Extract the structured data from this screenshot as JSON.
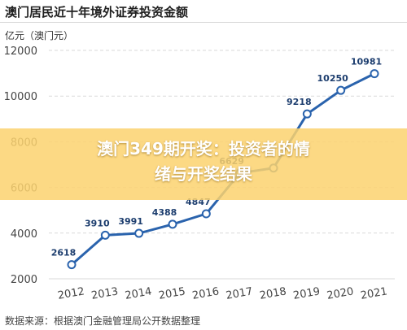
{
  "chart_title": "澳门居民近十年境外证券投资金额",
  "unit_label": "亿元（澳门元）",
  "overlay": {
    "line1": "澳门349期开奖：投资者的情",
    "line2": "绪与开奖结果"
  },
  "source": "数据来源：根据澳门金融管理局公开数据整理",
  "colors": {
    "line": "#2a63ad",
    "marker_stroke": "#2a63ad",
    "marker_fill": "#ffffff",
    "grid": "#d9d9d9",
    "label": "#1c3d6e",
    "banner": "#fcd26e"
  },
  "chart_data": {
    "type": "line",
    "title": "澳门居民近十年境外证券投资金额",
    "ylabel": "亿元（澳门元）",
    "xlabel": "",
    "ylim": [
      2000,
      12000
    ],
    "yticks": [
      2000,
      4000,
      6000,
      8000,
      10000,
      12000
    ],
    "grid": true,
    "legend": "none",
    "x": [
      "2012",
      "2013",
      "2014",
      "2015",
      "2016",
      "2017",
      "2018",
      "2019",
      "2020",
      "2021"
    ],
    "series": [
      {
        "values": [
          2618,
          3910,
          3991,
          4388,
          4847,
          6629,
          6850,
          9218,
          10250,
          10981
        ],
        "labels": [
          "2618",
          "3910",
          "3991",
          "4388",
          "4847",
          "6629",
          "",
          "9218",
          "10250",
          "10981"
        ]
      }
    ]
  }
}
